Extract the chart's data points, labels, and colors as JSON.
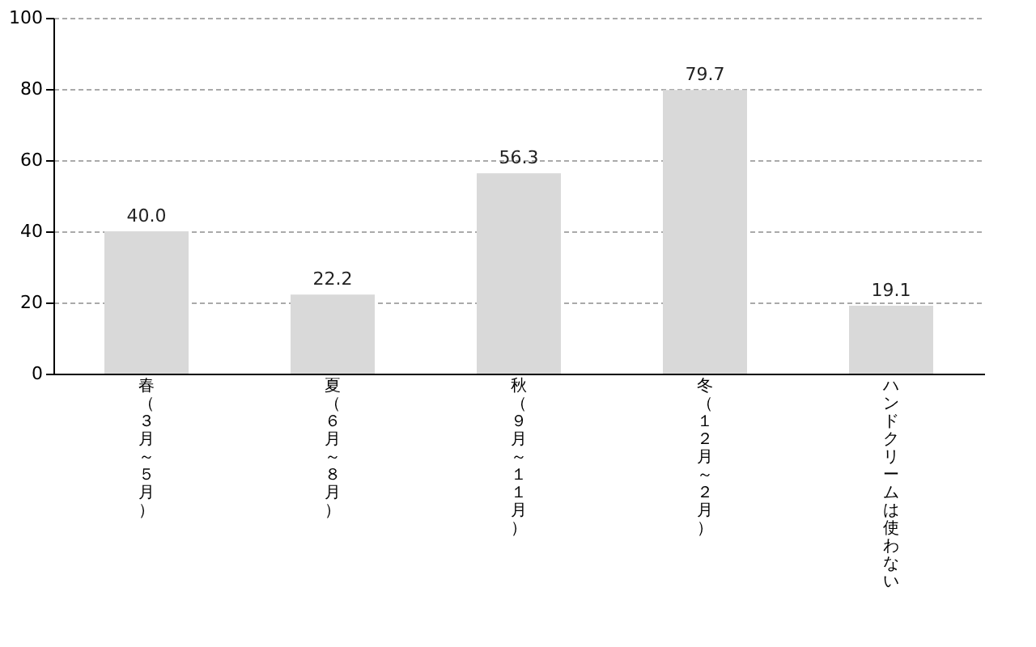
{
  "chart_data": {
    "type": "bar",
    "categories": [
      "春（３月～５月）",
      "夏（６月～８月）",
      "秋（９月～１１月）",
      "冬（１２月～２月）",
      "ハンドクリームは使わない"
    ],
    "values": [
      40.0,
      22.2,
      56.3,
      79.7,
      19.1
    ],
    "color": "#d9d9d9",
    "ylim": [
      0,
      100
    ],
    "yticks": [
      0,
      20,
      40,
      60,
      80,
      100
    ],
    "value_labels": [
      "40.0",
      "22.2",
      "56.3",
      "79.7",
      "19.1"
    ],
    "grid": "y"
  }
}
